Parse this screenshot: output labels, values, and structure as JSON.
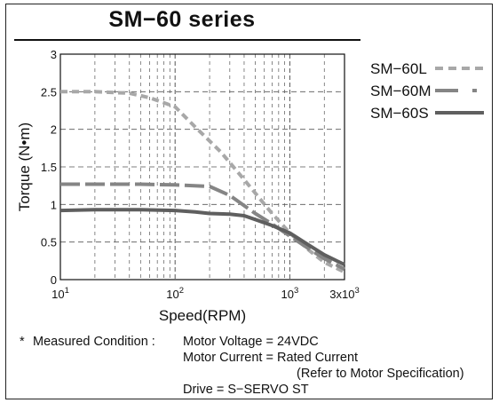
{
  "chart_data": {
    "type": "line",
    "title": "SM−60 series",
    "xlabel": "Speed(RPM)",
    "ylabel": "Torque (N•m)",
    "xscale": "log",
    "xlim": [
      10,
      3000
    ],
    "ylim": [
      0,
      3
    ],
    "x_ticks": [
      {
        "value": 10,
        "base": "10",
        "exp": "1"
      },
      {
        "value": 100,
        "base": "10",
        "exp": "2"
      },
      {
        "value": 1000,
        "base": "10",
        "exp": "3"
      },
      {
        "value": 3000,
        "base": "3x10",
        "exp": "3"
      }
    ],
    "y_ticks": [
      {
        "value": 0,
        "label": "0"
      },
      {
        "value": 0.5,
        "label": "0.5"
      },
      {
        "value": 1,
        "label": "1"
      },
      {
        "value": 1.5,
        "label": "1.5"
      },
      {
        "value": 2,
        "label": "2"
      },
      {
        "value": 2.5,
        "label": "2.5"
      },
      {
        "value": 3,
        "label": "3"
      }
    ],
    "grid": true,
    "legend_position": "right",
    "series": [
      {
        "name": "SM−60L",
        "style": "dotted",
        "color": "#a8a8a8",
        "x": [
          10,
          20,
          40,
          60,
          100,
          150,
          250,
          400,
          700,
          1000,
          1500,
          2000,
          3000
        ],
        "y": [
          2.5,
          2.5,
          2.48,
          2.42,
          2.3,
          2.03,
          1.7,
          1.33,
          0.88,
          0.62,
          0.38,
          0.23,
          0.1
        ]
      },
      {
        "name": "SM−60M",
        "style": "dashed",
        "color": "#858585",
        "x": [
          10,
          20,
          50,
          100,
          200,
          300,
          500,
          700,
          1000,
          1500,
          2000,
          3000
        ],
        "y": [
          1.27,
          1.27,
          1.27,
          1.26,
          1.24,
          1.12,
          0.88,
          0.74,
          0.58,
          0.4,
          0.28,
          0.14
        ]
      },
      {
        "name": "SM−60S",
        "style": "solid",
        "color": "#5f5f5f",
        "x": [
          10,
          20,
          50,
          100,
          150,
          200,
          300,
          400,
          500,
          700,
          1000,
          1500,
          2000,
          3000
        ],
        "y": [
          0.92,
          0.93,
          0.93,
          0.92,
          0.9,
          0.88,
          0.87,
          0.85,
          0.8,
          0.72,
          0.62,
          0.45,
          0.33,
          0.2
        ]
      }
    ]
  },
  "condition": {
    "bullet": "*",
    "heading": "Measured Condition :",
    "lines": [
      "Motor Voltage = 24VDC",
      "Motor Current = Rated Current",
      "(Refer to Motor Specification)",
      "Drive = S−SERVO ST"
    ]
  }
}
